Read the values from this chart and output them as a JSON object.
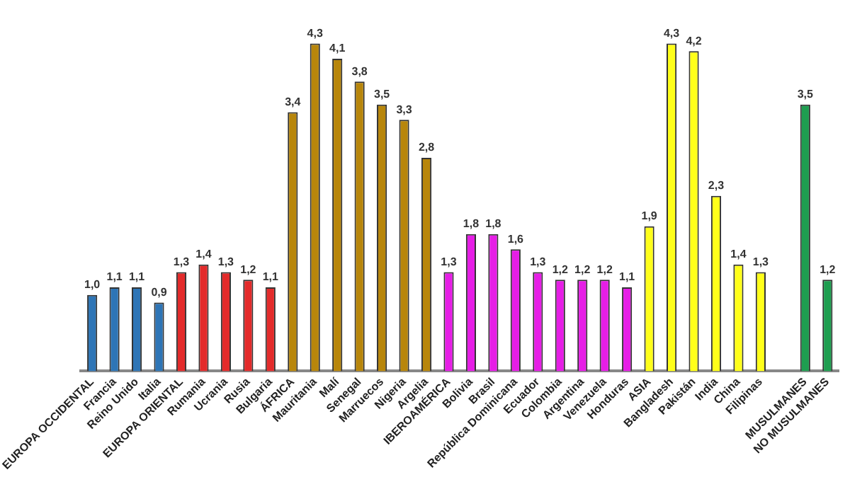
{
  "chart_data": {
    "type": "bar",
    "categories": [
      "EUROPA OCCIDENTAL",
      "Francia",
      "Reino Unido",
      "Italia",
      "EUROPA ORIENTAL",
      "Rumania",
      "Ucrania",
      "Rusia",
      "Bulgaria",
      "ÁFRICA",
      "Mauritania",
      "Malí",
      "Senegal",
      "Marruecos",
      "Nigeria",
      "Argelia",
      "IBEROAMÉRICA",
      "Bolivia",
      "Brasil",
      "República Dominicana",
      "Ecuador",
      "Colombia",
      "Argentina",
      "Venezuela",
      "Honduras",
      "ASIA",
      "Bangladesh",
      "Pakistán",
      "India",
      "China",
      "Filipinas",
      null,
      "MUSULMANES",
      "NO MUSULMANES"
    ],
    "values": [
      1.0,
      1.1,
      1.1,
      0.9,
      1.3,
      1.4,
      1.3,
      1.2,
      1.1,
      3.4,
      4.3,
      4.1,
      3.8,
      3.5,
      3.3,
      2.8,
      1.3,
      1.8,
      1.8,
      1.6,
      1.3,
      1.2,
      1.2,
      1.2,
      1.1,
      1.9,
      4.3,
      4.2,
      2.3,
      1.4,
      1.3,
      null,
      3.5,
      1.2
    ],
    "value_labels": [
      "1,0",
      "1,1",
      "1,1",
      "0,9",
      "1,3",
      "1,4",
      "1,3",
      "1,2",
      "1,1",
      "3,4",
      "4,3",
      "4,1",
      "3,8",
      "3,5",
      "3,3",
      "2,8",
      "1,3",
      "1,8",
      "1,8",
      "1,6",
      "1,3",
      "1,2",
      "1,2",
      "1,2",
      "1,1",
      "1,9",
      "4,3",
      "4,2",
      "2,3",
      "1,4",
      "1,3",
      null,
      "3,5",
      "1,2"
    ],
    "colors": [
      "#2e75b6",
      "#2e75b6",
      "#2e75b6",
      "#2e75b6",
      "#e32b2b",
      "#e32b2b",
      "#e32b2b",
      "#e32b2b",
      "#e32b2b",
      "#b8860b",
      "#b8860b",
      "#b8860b",
      "#b8860b",
      "#b8860b",
      "#b8860b",
      "#b8860b",
      "#e61ee6",
      "#e61ee6",
      "#e61ee6",
      "#e61ee6",
      "#e61ee6",
      "#e61ee6",
      "#e61ee6",
      "#e61ee6",
      "#e61ee6",
      "#ffff1a",
      "#ffff1a",
      "#ffff1a",
      "#ffff1a",
      "#ffff1a",
      "#ffff1a",
      "#ffffff",
      "#1e9e50",
      "#1e9e50"
    ],
    "grid": false,
    "legend": false
  }
}
